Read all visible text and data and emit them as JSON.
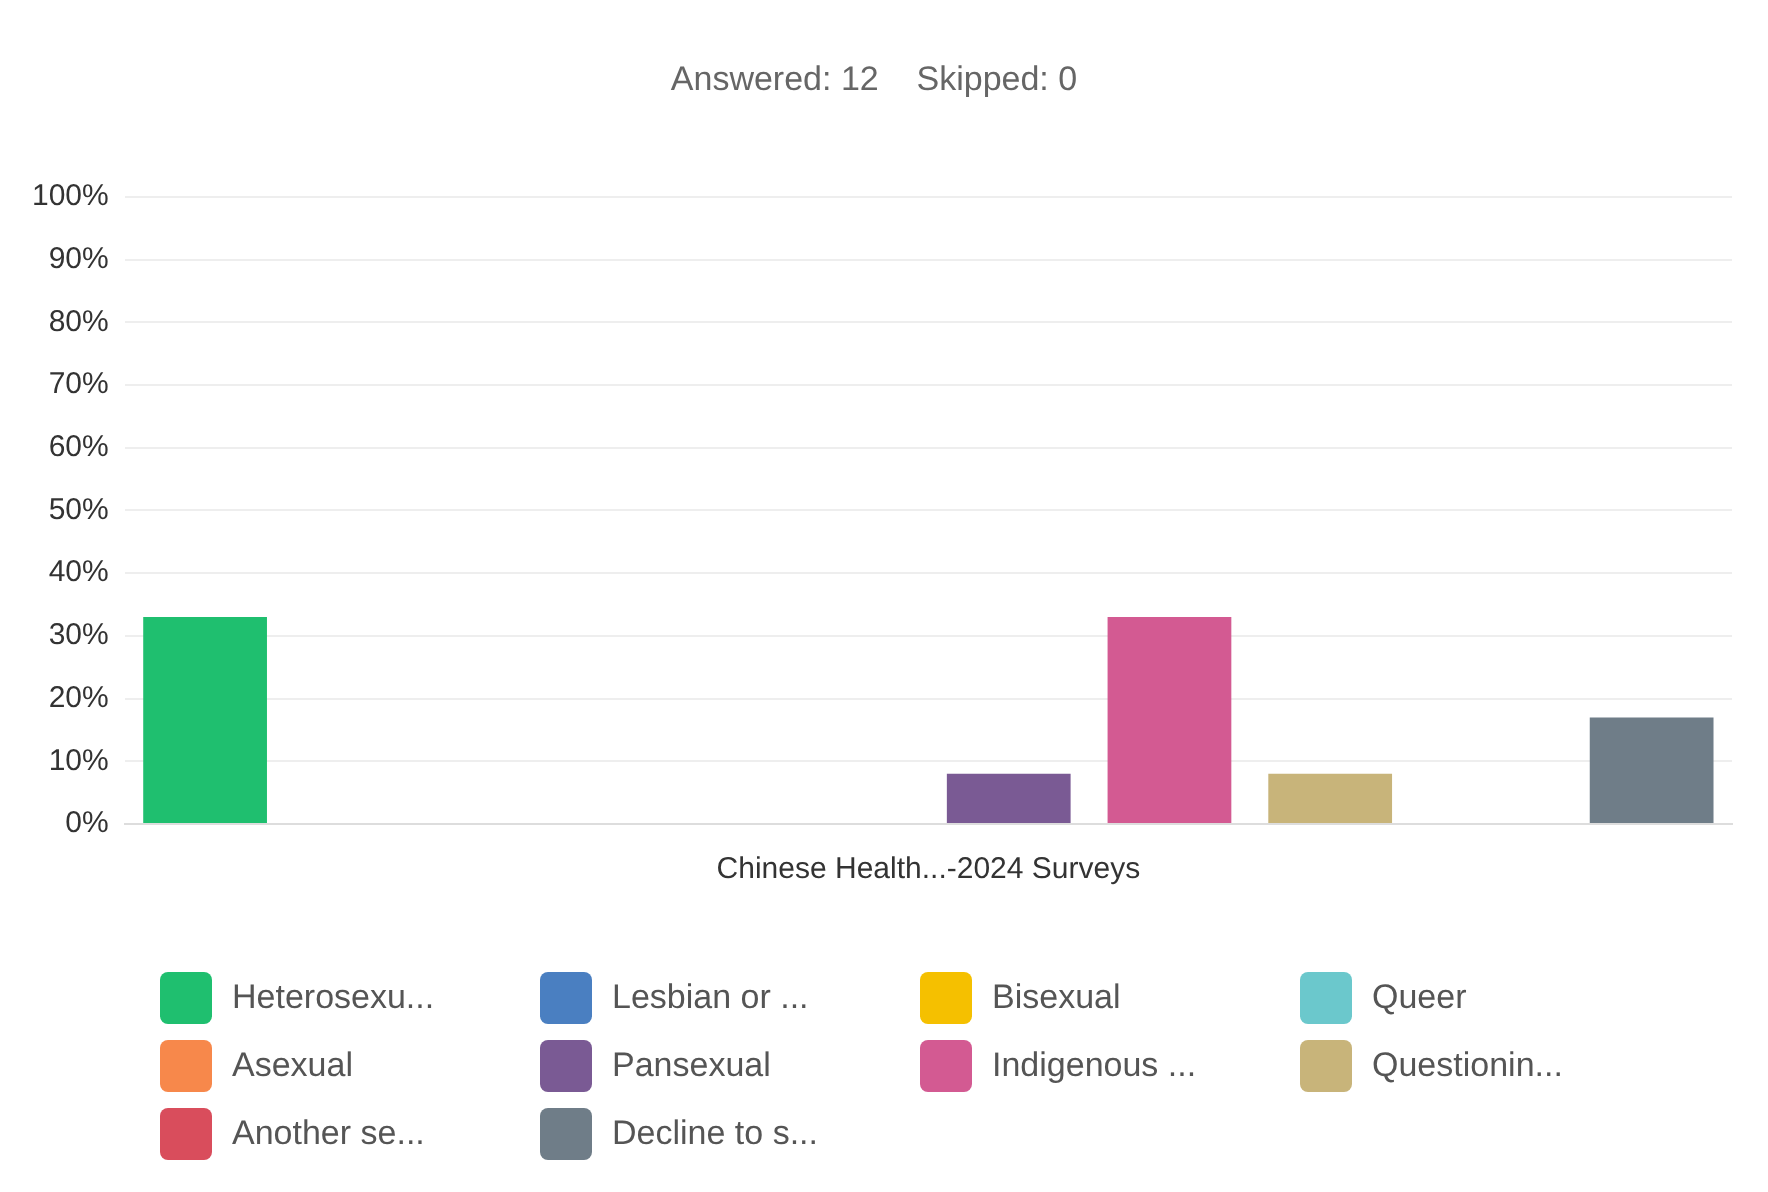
{
  "chart_data": {
    "type": "bar",
    "title": "Answered: 12    Skipped: 0",
    "categories": [
      "Chinese Health...-2024 Surveys"
    ],
    "series": [
      {
        "name": "Heterosexu...",
        "color": "#1fbf6f",
        "values": [
          33
        ]
      },
      {
        "name": "Lesbian or ...",
        "color": "#4a7fc1",
        "values": [
          0
        ]
      },
      {
        "name": "Bisexual",
        "color": "#f5c000",
        "values": [
          0
        ]
      },
      {
        "name": "Queer",
        "color": "#6bc8cc",
        "values": [
          0
        ]
      },
      {
        "name": "Asexual",
        "color": "#f7884b",
        "values": [
          0
        ]
      },
      {
        "name": "Pansexual",
        "color": "#7a5a94",
        "values": [
          8
        ]
      },
      {
        "name": "Indigenous ...",
        "color": "#d35a92",
        "values": [
          33
        ]
      },
      {
        "name": "Questionin...",
        "color": "#c8b47a",
        "values": [
          8
        ]
      },
      {
        "name": "Another se...",
        "color": "#d94d5c",
        "values": [
          0
        ]
      },
      {
        "name": "Decline to s...",
        "color": "#6f7d88",
        "values": [
          17
        ]
      }
    ],
    "ylim": [
      0,
      100
    ],
    "yticks": [
      {
        "value": 0,
        "label": "0%"
      },
      {
        "value": 10,
        "label": "10%"
      },
      {
        "value": 20,
        "label": "20%"
      },
      {
        "value": 30,
        "label": "30%"
      },
      {
        "value": 40,
        "label": "40%"
      },
      {
        "value": 50,
        "label": "50%"
      },
      {
        "value": 60,
        "label": "60%"
      },
      {
        "value": 70,
        "label": "70%"
      },
      {
        "value": 80,
        "label": "80%"
      },
      {
        "value": 90,
        "label": "90%"
      },
      {
        "value": 100,
        "label": "100%"
      }
    ],
    "grid": "y",
    "legend": "bottom"
  }
}
